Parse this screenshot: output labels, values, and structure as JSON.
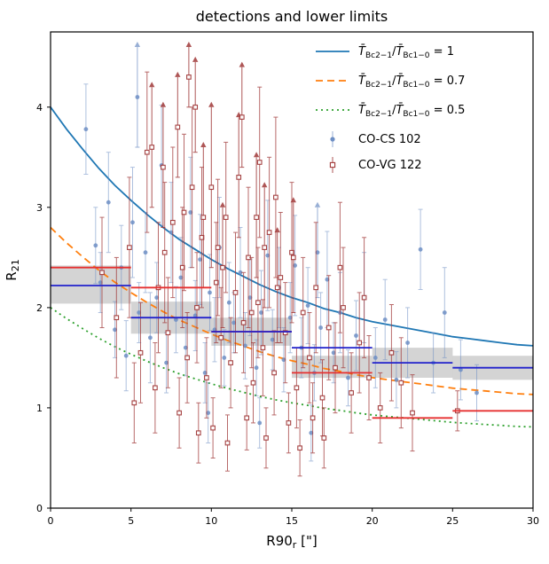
{
  "title": "detections and lower limits",
  "axes": {
    "xlabel_base": "R90",
    "xlabel_sub": "r",
    "xlabel_unit": " [\"]",
    "ylabel_base": "R",
    "ylabel_sub": "21",
    "xticks": [
      0,
      5,
      10,
      15,
      20,
      25,
      30
    ],
    "yticks": [
      0,
      1,
      2,
      3,
      4
    ],
    "xlim": [
      0,
      30
    ],
    "ylim": [
      0,
      4.75
    ]
  },
  "colors": {
    "curve1": "#1f77b4",
    "curve2": "#ff7f0e",
    "curve3": "#2ca02c",
    "cs": "#6d8ec4",
    "vg": "#a13939",
    "step_blue": "#2222cc",
    "step_red": "#e63030",
    "band": "#aaaaaa",
    "frame": "#000000"
  },
  "legend": {
    "tbar": "T̄",
    "sub1": "Bc2−1",
    "sub2": "Bc1−0",
    "curve_items": [
      {
        "ratio_label": "1"
      },
      {
        "ratio_label": "0.7"
      },
      {
        "ratio_label": "0.5"
      }
    ],
    "scatter_items": [
      {
        "label": "CO-CS 102"
      },
      {
        "label": "CO-VG 122"
      }
    ]
  },
  "chart_data": {
    "type": "scatter",
    "title": "detections and lower limits",
    "xlabel": "R90_r [\"]",
    "ylabel": "R_21",
    "xlim": [
      0,
      30
    ],
    "ylim": [
      0,
      4.75
    ],
    "grid": false,
    "legend_position": "upper right",
    "curves": {
      "note": "model curves R21 vs R90; orange and green are base curve scaled by ratio",
      "ratios": [
        1,
        0.7,
        0.5
      ],
      "x": [
        0,
        1,
        2,
        3,
        4,
        5,
        6,
        7,
        8,
        9,
        10,
        11,
        12,
        13,
        14,
        15,
        16,
        17,
        18,
        19,
        20,
        21,
        22,
        23,
        24,
        25,
        26,
        27,
        28,
        29,
        30
      ],
      "base_y": [
        4.0,
        3.78,
        3.58,
        3.39,
        3.22,
        3.07,
        2.93,
        2.8,
        2.68,
        2.58,
        2.48,
        2.39,
        2.31,
        2.23,
        2.16,
        2.1,
        2.05,
        1.99,
        1.95,
        1.9,
        1.86,
        1.83,
        1.8,
        1.77,
        1.74,
        1.71,
        1.69,
        1.67,
        1.65,
        1.63,
        1.62
      ]
    },
    "bins": {
      "edges": [
        0,
        5,
        10,
        15,
        20,
        25,
        30
      ],
      "blue_median": [
        2.22,
        1.9,
        1.76,
        1.6,
        1.45,
        1.4
      ],
      "red_median": [
        2.4,
        2.2,
        1.76,
        1.35,
        0.9,
        0.97
      ],
      "band_lo": [
        2.04,
        1.74,
        1.62,
        1.3,
        1.3,
        1.28
      ],
      "band_hi": [
        2.42,
        2.06,
        1.9,
        1.52,
        1.6,
        1.52
      ]
    },
    "series": [
      {
        "name": "CO-CS 102",
        "marker": "circle",
        "points": [
          [
            2.2,
            3.78,
            0.45
          ],
          [
            2.8,
            2.62,
            0.38
          ],
          [
            3.1,
            2.25,
            0.3
          ],
          [
            3.6,
            3.05,
            0.5
          ],
          [
            4.0,
            1.78,
            0.28
          ],
          [
            4.4,
            2.4,
            0.42
          ],
          [
            4.7,
            1.52,
            0.35
          ],
          [
            5.1,
            2.85,
            0.55
          ],
          [
            5.5,
            1.95,
            0.3
          ],
          [
            5.9,
            2.55,
            0.4
          ],
          [
            6.2,
            1.7,
            0.45
          ],
          [
            6.6,
            2.1,
            0.35
          ],
          [
            6.9,
            3.42,
            0.6
          ],
          [
            7.2,
            1.45,
            0.3
          ],
          [
            7.5,
            2.75,
            0.5
          ],
          [
            7.8,
            1.88,
            0.33
          ],
          [
            8.1,
            2.3,
            0.4
          ],
          [
            8.4,
            1.6,
            0.28
          ],
          [
            8.7,
            2.95,
            0.55
          ],
          [
            9.0,
            1.92,
            0.35
          ],
          [
            9.3,
            2.48,
            0.45
          ],
          [
            9.6,
            1.35,
            0.3
          ],
          [
            9.8,
            0.95,
            0.3
          ],
          [
            9.9,
            2.15,
            0.38
          ],
          [
            10.2,
            1.78,
            0.32
          ],
          [
            10.5,
            2.6,
            0.5
          ],
          [
            10.8,
            1.5,
            0.28
          ],
          [
            11.1,
            2.05,
            0.4
          ],
          [
            11.4,
            1.85,
            0.3
          ],
          [
            11.8,
            2.35,
            0.45
          ],
          [
            12.1,
            1.62,
            0.33
          ],
          [
            12.4,
            2.1,
            0.38
          ],
          [
            12.8,
            1.4,
            0.28
          ],
          [
            13.0,
            0.85,
            0.25
          ],
          [
            13.1,
            1.95,
            0.42
          ],
          [
            13.5,
            2.52,
            0.55
          ],
          [
            13.8,
            1.68,
            0.3
          ],
          [
            14.2,
            2.2,
            0.4
          ],
          [
            14.5,
            1.48,
            0.32
          ],
          [
            14.9,
            1.9,
            0.35
          ],
          [
            15.2,
            2.42,
            0.5
          ],
          [
            15.6,
            1.6,
            0.3
          ],
          [
            16.0,
            2.02,
            0.38
          ],
          [
            16.2,
            0.75,
            0.28
          ],
          [
            16.4,
            1.35,
            0.28
          ],
          [
            16.8,
            1.8,
            0.35
          ],
          [
            17.2,
            2.28,
            0.48
          ],
          [
            17.6,
            1.55,
            0.3
          ],
          [
            18.0,
            1.95,
            0.4
          ],
          [
            18.5,
            1.3,
            0.28
          ],
          [
            19.0,
            1.72,
            0.35
          ],
          [
            19.5,
            2.1,
            0.45
          ],
          [
            20.2,
            1.5,
            0.3
          ],
          [
            20.8,
            1.88,
            0.4
          ],
          [
            21.5,
            1.28,
            0.28
          ],
          [
            22.2,
            1.65,
            0.35
          ],
          [
            23.0,
            2.58,
            0.4
          ],
          [
            23.8,
            1.45,
            0.3
          ],
          [
            24.5,
            1.95,
            0.45
          ],
          [
            25.5,
            1.38,
            0.3
          ],
          [
            26.5,
            1.15,
            0.28
          ]
        ],
        "lower_limits": [
          [
            5.4,
            4.1,
            0.5
          ],
          [
            16.6,
            2.55,
            0.45
          ]
        ]
      },
      {
        "name": "CO-VG 122",
        "marker": "open-square",
        "points": [
          [
            3.2,
            2.35,
            0.55
          ],
          [
            4.1,
            1.9,
            0.6
          ],
          [
            4.9,
            2.6,
            0.7
          ],
          [
            5.2,
            1.05,
            0.4
          ],
          [
            5.6,
            1.55,
            0.5
          ],
          [
            6.0,
            3.55,
            0.8
          ],
          [
            6.5,
            1.2,
            0.45
          ],
          [
            6.7,
            2.2,
            0.65
          ],
          [
            7.1,
            2.55,
            0.7
          ],
          [
            7.3,
            1.75,
            0.55
          ],
          [
            7.6,
            2.85,
            0.75
          ],
          [
            8.0,
            0.95,
            0.35
          ],
          [
            8.2,
            2.4,
            0.6
          ],
          [
            8.3,
            2.95,
            0.78
          ],
          [
            8.5,
            1.5,
            0.45
          ],
          [
            8.8,
            3.2,
            0.8
          ],
          [
            9.1,
            2.0,
            0.55
          ],
          [
            9.2,
            0.75,
            0.3
          ],
          [
            9.4,
            2.7,
            0.7
          ],
          [
            9.7,
            1.3,
            0.4
          ],
          [
            10.1,
            0.8,
            0.3
          ],
          [
            10.3,
            2.25,
            0.6
          ],
          [
            10.4,
            2.6,
            0.68
          ],
          [
            10.6,
            1.7,
            0.5
          ],
          [
            10.9,
            2.9,
            0.75
          ],
          [
            11.0,
            0.65,
            0.28
          ],
          [
            11.2,
            1.45,
            0.45
          ],
          [
            11.5,
            2.15,
            0.6
          ],
          [
            12.0,
            1.85,
            0.5
          ],
          [
            12.2,
            0.9,
            0.32
          ],
          [
            12.3,
            2.5,
            0.7
          ],
          [
            12.5,
            1.95,
            0.55
          ],
          [
            12.6,
            1.25,
            0.4
          ],
          [
            12.9,
            2.05,
            0.55
          ],
          [
            13.0,
            3.45,
            0.75
          ],
          [
            13.2,
            1.6,
            0.48
          ],
          [
            13.4,
            0.7,
            0.3
          ],
          [
            13.6,
            2.75,
            0.75
          ],
          [
            13.9,
            1.35,
            0.42
          ],
          [
            14.0,
            3.1,
            0.8
          ],
          [
            14.3,
            2.3,
            0.65
          ],
          [
            14.6,
            1.75,
            0.5
          ],
          [
            14.8,
            0.85,
            0.3
          ],
          [
            15.0,
            2.55,
            0.7
          ],
          [
            15.3,
            1.2,
            0.4
          ],
          [
            15.5,
            0.6,
            0.28
          ],
          [
            15.7,
            1.95,
            0.55
          ],
          [
            16.1,
            1.5,
            0.45
          ],
          [
            16.3,
            0.9,
            0.35
          ],
          [
            16.5,
            2.2,
            0.65
          ],
          [
            16.9,
            1.1,
            0.38
          ],
          [
            17.0,
            0.7,
            0.3
          ],
          [
            17.3,
            1.8,
            0.52
          ],
          [
            17.7,
            1.4,
            0.45
          ],
          [
            18.0,
            2.4,
            0.65
          ],
          [
            18.2,
            2.0,
            0.6
          ],
          [
            18.7,
            1.15,
            0.4
          ],
          [
            19.2,
            1.65,
            0.5
          ],
          [
            19.5,
            2.1,
            0.6
          ],
          [
            19.8,
            1.3,
            0.42
          ],
          [
            20.5,
            1.0,
            0.35
          ],
          [
            21.2,
            1.55,
            0.48
          ],
          [
            21.8,
            1.25,
            0.45
          ],
          [
            22.5,
            0.95,
            0.38
          ],
          [
            25.3,
            0.97,
            0.2
          ]
        ],
        "lower_limits": [
          [
            6.3,
            3.6,
            0.6
          ],
          [
            7.0,
            3.4,
            0.6
          ],
          [
            7.9,
            3.8,
            0.5
          ],
          [
            8.6,
            4.3,
            0.3
          ],
          [
            9.0,
            4.0,
            0.45
          ],
          [
            9.5,
            2.9,
            0.7
          ],
          [
            10.0,
            3.2,
            0.8
          ],
          [
            10.7,
            2.4,
            0.6
          ],
          [
            11.7,
            3.3,
            0.6
          ],
          [
            11.9,
            3.9,
            0.5
          ],
          [
            12.8,
            2.9,
            0.6
          ],
          [
            13.3,
            2.6,
            0.6
          ],
          [
            14.1,
            2.2,
            0.55
          ],
          [
            15.1,
            2.5,
            0.55
          ]
        ]
      }
    ]
  }
}
